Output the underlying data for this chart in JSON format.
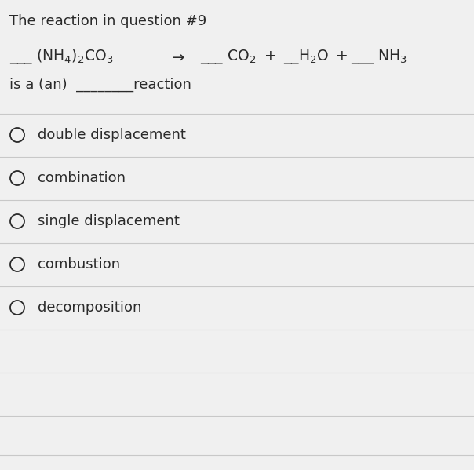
{
  "title": "The reaction in question #9",
  "title_fontsize": 13,
  "bg_color": "#f0f0f0",
  "text_color": "#2a2a2a",
  "line_color": "#c8c8c8",
  "options": [
    "double displacement",
    "combination",
    "single displacement",
    "combustion",
    "decomposition"
  ],
  "options_fontsize": 13,
  "fig_width": 6.04,
  "fig_height": 5.99,
  "dpi": 100
}
